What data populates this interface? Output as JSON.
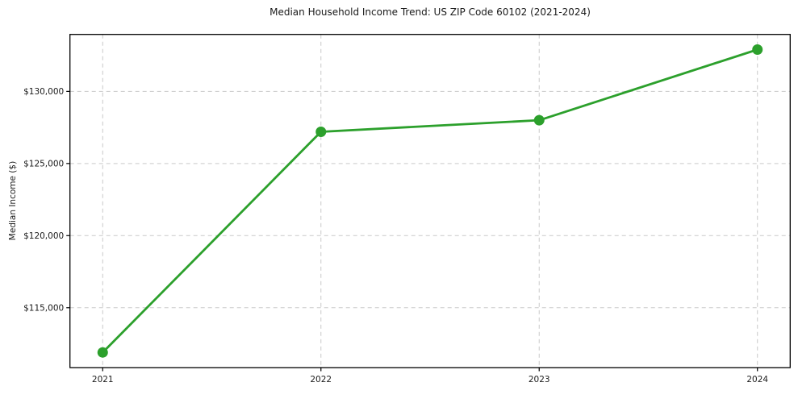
{
  "title": "Median Household Income Trend: US ZIP Code 60102 (2021-2024)",
  "chart_data": {
    "type": "line",
    "x": [
      2021,
      2022,
      2023,
      2024
    ],
    "categories": [
      "2021",
      "2022",
      "2023",
      "2024"
    ],
    "series": [
      {
        "name": "Median Household Income",
        "values": [
          111900,
          127200,
          128000,
          132900
        ]
      }
    ],
    "title": "Median Household Income Trend: US ZIP Code 60102 (2021-2024)",
    "xlabel": "",
    "ylabel": "Median Income ($)",
    "xlim": [
      2020.85,
      2024.15
    ],
    "ylim": [
      110850,
      133950
    ],
    "yticks": [
      115000,
      120000,
      125000,
      130000
    ],
    "ytick_labels": [
      "$115,000",
      "$120,000",
      "$125,000",
      "$130,000"
    ],
    "xticks": [
      2021,
      2022,
      2023,
      2024
    ],
    "xtick_labels": [
      "2021",
      "2022",
      "2023",
      "2024"
    ],
    "grid": true,
    "grid_style": "dashed",
    "legend_position": "none",
    "marker": "circle"
  },
  "colors": {
    "line": "#2ca02c",
    "marker": "#2ca02c",
    "grid": "#c9c9c9",
    "spine": "#000000",
    "text": "#1a1a1a",
    "background": "#ffffff"
  }
}
